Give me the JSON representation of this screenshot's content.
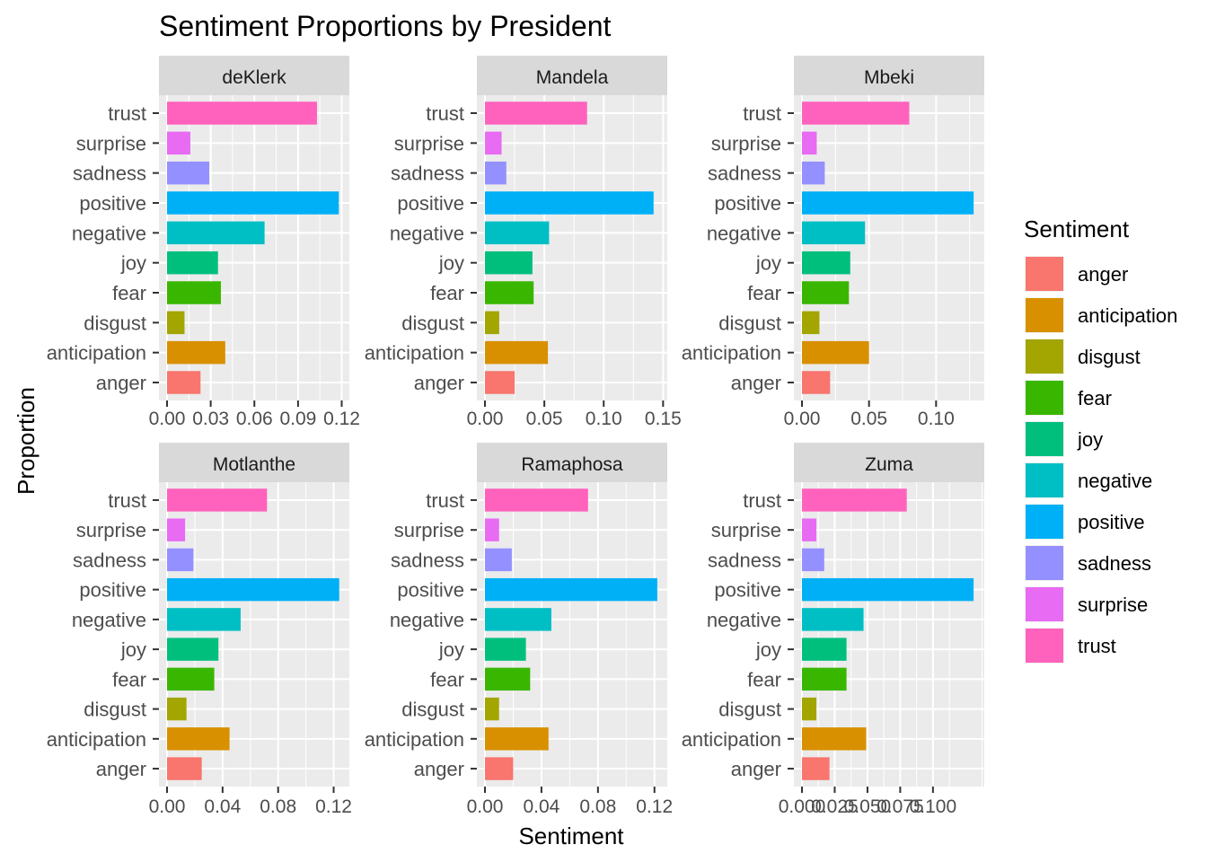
{
  "chart_data": {
    "type": "bar",
    "orientation": "horizontal",
    "title": "Sentiment Proportions by President",
    "xlabel": "Sentiment",
    "ylabel": "Proportion",
    "legend": {
      "title": "Sentiment",
      "position": "right",
      "entries": [
        {
          "label": "anger",
          "color": "#F8766D"
        },
        {
          "label": "anticipation",
          "color": "#D89000"
        },
        {
          "label": "disgust",
          "color": "#A3A500"
        },
        {
          "label": "fear",
          "color": "#39B600"
        },
        {
          "label": "joy",
          "color": "#00BF7D"
        },
        {
          "label": "negative",
          "color": "#00BFC4"
        },
        {
          "label": "positive",
          "color": "#00B0F6"
        },
        {
          "label": "sadness",
          "color": "#9590FF"
        },
        {
          "label": "surprise",
          "color": "#E76BF3"
        },
        {
          "label": "trust",
          "color": "#FF62BC"
        }
      ]
    },
    "categories": [
      "anger",
      "anticipation",
      "disgust",
      "fear",
      "joy",
      "negative",
      "positive",
      "sadness",
      "surprise",
      "trust"
    ],
    "grid": true,
    "panels": [
      {
        "name": "deKlerk",
        "values": [
          0.023,
          0.04,
          0.012,
          0.037,
          0.035,
          0.067,
          0.118,
          0.029,
          0.016,
          0.103
        ],
        "xlim": [
          0,
          0.124
        ],
        "ticks": [
          0,
          0.03,
          0.06,
          0.09,
          0.12
        ],
        "tick_labels": [
          "0.00",
          "0.03",
          "0.06",
          "0.09",
          "0.12"
        ]
      },
      {
        "name": "Mandela",
        "values": [
          0.025,
          0.053,
          0.012,
          0.041,
          0.04,
          0.054,
          0.142,
          0.018,
          0.014,
          0.086
        ],
        "xlim": [
          0,
          0.152
        ],
        "ticks": [
          0,
          0.05,
          0.1,
          0.15
        ],
        "tick_labels": [
          "0.00",
          "0.05",
          "0.10",
          "0.15"
        ]
      },
      {
        "name": "Mbeki",
        "values": [
          0.021,
          0.05,
          0.013,
          0.035,
          0.036,
          0.047,
          0.128,
          0.017,
          0.011,
          0.08
        ],
        "xlim": [
          0,
          0.1346
        ],
        "ticks": [
          0,
          0.05,
          0.1
        ],
        "tick_labels": [
          "0.00",
          "0.05",
          "0.10"
        ]
      },
      {
        "name": "Motlanthe",
        "values": [
          0.025,
          0.045,
          0.014,
          0.034,
          0.037,
          0.053,
          0.124,
          0.019,
          0.013,
          0.072
        ],
        "xlim": [
          0,
          0.13
        ],
        "ticks": [
          0,
          0.04,
          0.08,
          0.12
        ],
        "tick_labels": [
          "0.00",
          "0.04",
          "0.08",
          "0.12"
        ]
      },
      {
        "name": "Ramaphosa",
        "values": [
          0.02,
          0.045,
          0.01,
          0.032,
          0.029,
          0.047,
          0.122,
          0.019,
          0.01,
          0.073
        ],
        "xlim": [
          0,
          0.1278
        ],
        "ticks": [
          0,
          0.04,
          0.08,
          0.12
        ],
        "tick_labels": [
          "0.00",
          "0.04",
          "0.08",
          "0.12"
        ]
      },
      {
        "name": "Zuma",
        "values": [
          0.021,
          0.049,
          0.011,
          0.034,
          0.034,
          0.047,
          0.131,
          0.017,
          0.011,
          0.08
        ],
        "xlim": [
          0,
          0.1378
        ],
        "ticks": [
          0,
          0.025,
          0.05,
          0.075,
          0.1
        ],
        "tick_labels": [
          "0.000",
          "0.025",
          "0.050",
          "0.075",
          "0.100"
        ]
      }
    ]
  }
}
